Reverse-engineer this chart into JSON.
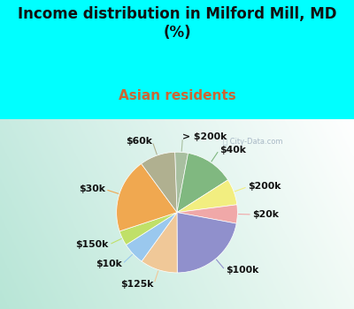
{
  "title": "Income distribution in Milford Mill, MD\n(%)",
  "subtitle": "Asian residents",
  "title_color": "#111111",
  "subtitle_color": "#cc6633",
  "bg_color": "#00ffff",
  "watermark": "ⓘ City-Data.com",
  "labels": [
    "> $200k",
    "$40k",
    "$200k",
    "$20k",
    "$100k",
    "$125k",
    "$10k",
    "$150k",
    "$30k",
    "$60k"
  ],
  "sizes": [
    3.5,
    13.0,
    7.0,
    5.0,
    22.0,
    10.0,
    6.0,
    4.0,
    20.0,
    9.5
  ],
  "colors": [
    "#a8bfa0",
    "#80b880",
    "#f2ee80",
    "#f0a8a8",
    "#9090cc",
    "#f0c898",
    "#9ac8ee",
    "#c0e068",
    "#f0a850",
    "#b0b090"
  ],
  "label_color": "#111111",
  "label_fontsize": 7.8,
  "startangle": 92,
  "title_fontsize": 12,
  "subtitle_fontsize": 11
}
